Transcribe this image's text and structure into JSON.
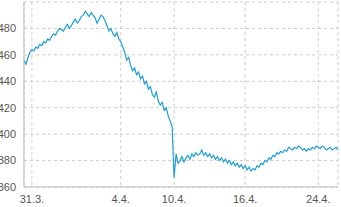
{
  "chart_data": {
    "type": "line",
    "categories": [
      null,
      null,
      null,
      null,
      "31.3.",
      null,
      null,
      null,
      null,
      null,
      null,
      null,
      null,
      null,
      null,
      null,
      null,
      null,
      null,
      null,
      null,
      null,
      null,
      null,
      null,
      null,
      null,
      null,
      null,
      null,
      null,
      null,
      null,
      null,
      null,
      null,
      null,
      null,
      null,
      null,
      null,
      null,
      null,
      null,
      null,
      null,
      null,
      null,
      null,
      "4.4.",
      null,
      null,
      null,
      null,
      null,
      null,
      null,
      null,
      null,
      null,
      null,
      null,
      null,
      null,
      null,
      null,
      null,
      null,
      null,
      null,
      null,
      null,
      null,
      null,
      null,
      null,
      "10.4.",
      null,
      null,
      null,
      null,
      null,
      null,
      null,
      null,
      null,
      null,
      null,
      null,
      null,
      null,
      null,
      null,
      null,
      null,
      null,
      null,
      null,
      null,
      null,
      null,
      null,
      null,
      null,
      null,
      null,
      null,
      null,
      null,
      null,
      null,
      null,
      "16.4.",
      null,
      null,
      null,
      null,
      null,
      null,
      null,
      null,
      null,
      null,
      null,
      null,
      null,
      null,
      null,
      null,
      null,
      null,
      null,
      null,
      null,
      null,
      null,
      null,
      null,
      null,
      null,
      null,
      null,
      null,
      null,
      null,
      null,
      null,
      null,
      null,
      "24.4.",
      null,
      null,
      null,
      null,
      null,
      null,
      null,
      null,
      null,
      null
    ],
    "values": [
      456,
      453,
      458,
      462,
      464,
      463,
      466,
      465,
      468,
      467,
      470,
      469,
      472,
      471,
      474,
      476,
      475,
      478,
      480,
      479,
      478,
      481,
      483,
      480,
      482,
      485,
      487,
      484,
      486,
      489,
      490,
      493,
      491,
      489,
      492,
      490,
      488,
      484,
      487,
      490,
      489,
      486,
      482,
      478,
      480,
      476,
      474,
      477,
      472,
      470,
      466,
      462,
      456,
      458,
      452,
      448,
      450,
      445,
      447,
      442,
      444,
      438,
      440,
      434,
      436,
      430,
      428,
      432,
      425,
      422,
      424,
      418,
      420,
      414,
      410,
      406,
      367,
      385,
      378,
      380,
      383,
      379,
      382,
      384,
      381,
      385,
      383,
      386,
      384,
      385,
      388,
      384,
      386,
      383,
      385,
      382,
      384,
      381,
      383,
      380,
      382,
      379,
      381,
      378,
      380,
      377,
      379,
      376,
      378,
      375,
      377,
      374,
      376,
      373,
      375,
      372,
      374,
      373,
      376,
      375,
      378,
      377,
      380,
      379,
      382,
      381,
      384,
      383,
      386,
      385,
      387,
      386,
      388,
      387,
      390,
      389,
      388,
      390,
      389,
      391,
      390,
      388,
      389,
      387,
      389,
      388,
      390,
      389,
      391,
      390,
      389,
      391,
      390,
      388,
      389,
      390,
      388,
      389,
      390,
      388
    ],
    "color": "#1e9fd6",
    "ylim": [
      360,
      500
    ],
    "yticks": [
      360,
      380,
      400,
      420,
      440,
      460,
      480
    ],
    "grid": true
  }
}
